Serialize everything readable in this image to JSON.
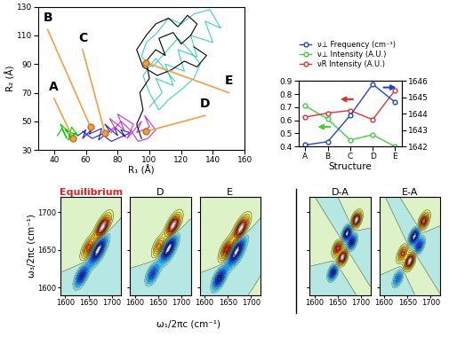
{
  "chart_data": [
    {
      "type": "path",
      "xlabel": "R₁ (Å)",
      "ylabel": "R₂ (Å)",
      "xlim": [
        30,
        160
      ],
      "ylim": [
        30,
        130
      ],
      "xticks": [
        40,
        60,
        80,
        100,
        120,
        140,
        160
      ],
      "yticks": [
        30,
        50,
        70,
        90,
        110,
        130
      ],
      "series": [
        {
          "color": "#00cc00",
          "x": [
            42,
            45,
            48,
            44,
            50,
            53,
            47,
            55,
            51,
            49,
            54,
            50
          ],
          "y": [
            40,
            45,
            38,
            48,
            42,
            36,
            44,
            40,
            46,
            37,
            42,
            39
          ]
        },
        {
          "color": "#2222cc",
          "x": [
            55,
            60,
            58,
            65,
            62,
            70,
            68,
            75,
            72,
            80,
            78,
            85,
            82,
            88,
            76,
            70,
            64,
            58
          ],
          "y": [
            40,
            44,
            38,
            46,
            41,
            45,
            37,
            43,
            48,
            40,
            46,
            39,
            44,
            42,
            36,
            41,
            38,
            43
          ]
        },
        {
          "color": "#cc33cc",
          "x": [
            72,
            78,
            75,
            84,
            80,
            90,
            86,
            95,
            92,
            100,
            97,
            104,
            99,
            93,
            88,
            82,
            76
          ],
          "y": [
            40,
            46,
            52,
            44,
            55,
            48,
            38,
            50,
            42,
            46,
            54,
            44,
            38,
            36,
            44,
            50,
            42
          ]
        },
        {
          "color": "#40d0c0",
          "x": [
            100,
            108,
            104,
            115,
            110,
            122,
            118,
            130,
            126,
            140,
            135,
            145,
            138,
            128,
            120,
            112,
            105,
            98,
            95,
            102,
            110,
            118,
            125,
            132,
            128,
            120,
            112,
            106,
            100,
            96,
            104,
            116
          ],
          "y": [
            60,
            70,
            80,
            75,
            90,
            85,
            100,
            95,
            110,
            105,
            120,
            115,
            128,
            125,
            118,
            122,
            112,
            105,
            95,
            88,
            98,
            108,
            100,
            90,
            80,
            72,
            65,
            58,
            70,
            82,
            94,
            78
          ]
        },
        {
          "color": "#000000",
          "x": [
            95,
            92,
            96,
            94,
            100,
            98,
            104,
            110,
            106,
            115,
            120,
            126,
            130,
            124,
            118,
            112,
            104,
            98,
            92,
            96,
            105,
            114,
            122,
            130,
            136,
            128
          ],
          "y": [
            38,
            48,
            58,
            70,
            80,
            92,
            100,
            96,
            108,
            112,
            104,
            110,
            118,
            124,
            116,
            122,
            118,
            110,
            100,
            88,
            82,
            86,
            92,
            88,
            96,
            102
          ]
        }
      ],
      "points": [
        {
          "label": "A",
          "x": 52,
          "y": 38
        },
        {
          "label": "B",
          "x": 63,
          "y": 46
        },
        {
          "label": "C",
          "x": 72,
          "y": 42
        },
        {
          "label": "D",
          "x": 98,
          "y": 43
        },
        {
          "label": "E",
          "x": 98,
          "y": 91
        }
      ],
      "color": "#f0a040",
      "marker": "o"
    },
    {
      "type": "line",
      "categories": [
        "A",
        "B",
        "C",
        "D",
        "E"
      ],
      "xlabel": "Structure",
      "ylim": [
        0.4,
        0.9
      ],
      "yticks": [
        0.4,
        0.5,
        0.6,
        0.7,
        0.8,
        0.9
      ],
      "y2lim": [
        1642,
        1646
      ],
      "y2ticks": [
        1642,
        1643,
        1644,
        1645,
        1646
      ],
      "legend": "upper left",
      "series": [
        {
          "name": "ν⊥ Frequency (cm⁻¹)",
          "color": "#2244cc",
          "marker": "o",
          "axis": "y2",
          "values": [
            1642.1,
            1642.3,
            1643.9,
            1645.8,
            1644.7
          ]
        },
        {
          "name": "ν⊥ Intensity (A.U.)",
          "color": "#44cc44",
          "marker": "o",
          "values": [
            0.71,
            0.61,
            0.45,
            0.49,
            0.4
          ]
        },
        {
          "name": "νR Intensity (A.U.)",
          "color": "#dd3333",
          "marker": "o",
          "values": [
            0.625,
            0.655,
            0.675,
            0.605,
            0.83
          ]
        }
      ]
    },
    {
      "type": "contour",
      "xlabel": "ω₁/2πc (cm⁻¹)",
      "ylabel": "ω₃/2πc (cm⁻¹)",
      "xlim": [
        1590,
        1720
      ],
      "ylim": [
        1590,
        1720
      ],
      "xticks": [
        1600,
        1650,
        1700
      ],
      "yticks": [
        1600,
        1650,
        1700
      ],
      "spectra": [
        {
          "title": "Equilibrium",
          "color": "#dd2222",
          "peaks": [
            {
              "w1": 1680,
              "w3": 1680,
              "amplitude": 1.0,
              "width_diagonal": 14,
              "width_antidiagonal": 6
            },
            {
              "w1": 1650,
              "w3": 1652,
              "amplitude": 0.7,
              "width_diagonal": 12,
              "width_antidiagonal": 6
            },
            {
              "w1": 1670,
              "w3": 1650,
              "amplitude": -1.0,
              "width_diagonal": 16,
              "width_antidiagonal": 7
            },
            {
              "w1": 1635,
              "w3": 1615,
              "amplitude": -0.7,
              "width_diagonal": 12,
              "width_antidiagonal": 6
            }
          ]
        },
        {
          "title": "D",
          "color": "#000000",
          "peaks": [
            {
              "w1": 1682,
              "w3": 1682,
              "amplitude": 1.0,
              "width_diagonal": 13,
              "width_antidiagonal": 6
            },
            {
              "w1": 1652,
              "w3": 1654,
              "amplitude": 0.6,
              "width_diagonal": 11,
              "width_antidiagonal": 6
            },
            {
              "w1": 1672,
              "w3": 1652,
              "amplitude": -1.0,
              "width_diagonal": 15,
              "width_antidiagonal": 7
            },
            {
              "w1": 1638,
              "w3": 1618,
              "amplitude": -0.6,
              "width_diagonal": 11,
              "width_antidiagonal": 6
            }
          ]
        },
        {
          "title": "E",
          "color": "#000000",
          "peaks": [
            {
              "w1": 1678,
              "w3": 1678,
              "amplitude": 1.0,
              "width_diagonal": 14,
              "width_antidiagonal": 6
            },
            {
              "w1": 1648,
              "w3": 1650,
              "amplitude": 0.8,
              "width_diagonal": 12,
              "width_antidiagonal": 6
            },
            {
              "w1": 1668,
              "w3": 1648,
              "amplitude": -1.0,
              "width_diagonal": 16,
              "width_antidiagonal": 7
            },
            {
              "w1": 1632,
              "w3": 1612,
              "amplitude": -0.8,
              "width_diagonal": 12,
              "width_antidiagonal": 6
            }
          ]
        },
        {
          "title": "D-A",
          "color": "#000000",
          "peaks": [
            {
              "w1": 1690,
              "w3": 1690,
              "amplitude": 0.5,
              "width_diagonal": 8,
              "width_antidiagonal": 5
            },
            {
              "w1": 1670,
              "w3": 1672,
              "amplitude": -0.5,
              "width_diagonal": 8,
              "width_antidiagonal": 5
            },
            {
              "w1": 1650,
              "w3": 1652,
              "amplitude": 0.4,
              "width_diagonal": 8,
              "width_antidiagonal": 5
            },
            {
              "w1": 1680,
              "w3": 1660,
              "amplitude": -0.4,
              "width_diagonal": 8,
              "width_antidiagonal": 5
            },
            {
              "w1": 1660,
              "w3": 1640,
              "amplitude": 0.5,
              "width_diagonal": 8,
              "width_antidiagonal": 5
            },
            {
              "w1": 1640,
              "w3": 1620,
              "amplitude": -0.4,
              "width_diagonal": 8,
              "width_antidiagonal": 5
            }
          ]
        },
        {
          "title": "E-A",
          "color": "#000000",
          "peaks": [
            {
              "w1": 1685,
              "w3": 1688,
              "amplitude": 0.5,
              "width_diagonal": 9,
              "width_antidiagonal": 5
            },
            {
              "w1": 1665,
              "w3": 1668,
              "amplitude": -0.6,
              "width_diagonal": 9,
              "width_antidiagonal": 5
            },
            {
              "w1": 1640,
              "w3": 1645,
              "amplitude": 0.4,
              "width_diagonal": 9,
              "width_antidiagonal": 5
            },
            {
              "w1": 1675,
              "w3": 1655,
              "amplitude": -0.4,
              "width_diagonal": 9,
              "width_antidiagonal": 5
            },
            {
              "w1": 1655,
              "w3": 1635,
              "amplitude": 0.6,
              "width_diagonal": 9,
              "width_antidiagonal": 5
            },
            {
              "w1": 1630,
              "w3": 1612,
              "amplitude": -0.3,
              "width_diagonal": 9,
              "width_antidiagonal": 5
            }
          ]
        }
      ]
    }
  ]
}
